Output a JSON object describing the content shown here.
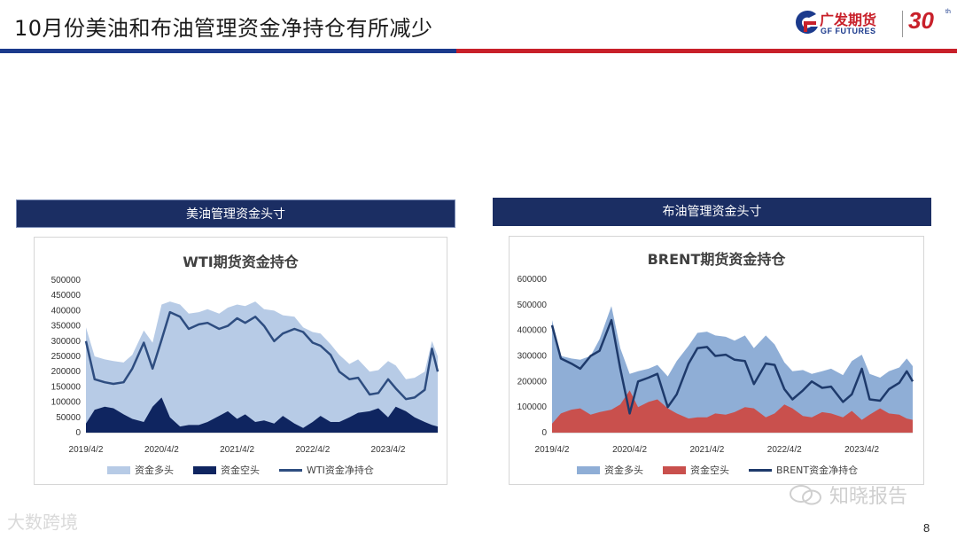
{
  "slide": {
    "title": "10月份美油和布油管理资金净持仓有所减少",
    "page_number": "8"
  },
  "logo": {
    "name_cn": "广发期货",
    "name_en": "GF FUTURES",
    "anniversary": "30",
    "anniversary_suffix": "th"
  },
  "colors": {
    "brand_blue": "#1b3a8c",
    "brand_red": "#c8202a",
    "header_navy": "#1b2e63"
  },
  "watermarks": {
    "left": "大数跨境",
    "right": "知晓报告"
  },
  "chart_data": [
    {
      "type": "area",
      "panel_header": "美油管理资金头寸",
      "title": "WTI期货资金持仓",
      "xlabel": "",
      "ylabel": "",
      "ylim": [
        0,
        500000
      ],
      "yticks": [
        0,
        50000,
        100000,
        150000,
        200000,
        250000,
        300000,
        350000,
        400000,
        450000,
        500000
      ],
      "xticks": [
        "2019/4/2",
        "2020/4/2",
        "2021/4/2",
        "2022/4/2",
        "2023/4/2"
      ],
      "x_range": [
        "2019/4/2",
        "2023/11/28"
      ],
      "legend_position": "bottom",
      "x": [
        "2019/4/2",
        "2019/5/14",
        "2019/7/2",
        "2019/8/13",
        "2019/10/1",
        "2019/11/12",
        "2020/1/7",
        "2020/2/18",
        "2020/4/2",
        "2020/5/12",
        "2020/6/30",
        "2020/8/11",
        "2020/9/29",
        "2020/11/10",
        "2021/1/5",
        "2021/2/16",
        "2021/4/2",
        "2021/5/11",
        "2021/6/29",
        "2021/8/10",
        "2021/9/28",
        "2021/11/9",
        "2022/1/4",
        "2022/2/15",
        "2022/4/2",
        "2022/5/10",
        "2022/6/28",
        "2022/8/9",
        "2022/9/27",
        "2022/11/8",
        "2023/1/3",
        "2023/2/14",
        "2023/4/2",
        "2023/5/9",
        "2023/6/27",
        "2023/8/8",
        "2023/9/26",
        "2023/10/31",
        "2023/11/28"
      ],
      "series": [
        {
          "name": "资金多头",
          "color": "#b7cbe6",
          "style": "area",
          "values": [
            345000,
            250000,
            240000,
            235000,
            230000,
            255000,
            335000,
            295000,
            420000,
            430000,
            420000,
            390000,
            395000,
            405000,
            390000,
            410000,
            420000,
            415000,
            430000,
            405000,
            400000,
            385000,
            380000,
            345000,
            330000,
            325000,
            290000,
            255000,
            225000,
            240000,
            200000,
            205000,
            235000,
            220000,
            175000,
            180000,
            200000,
            300000,
            250000
          ]
        },
        {
          "name": "资金空头",
          "color": "#0f2560",
          "style": "area",
          "values": [
            30000,
            75000,
            85000,
            80000,
            60000,
            45000,
            35000,
            85000,
            115000,
            50000,
            20000,
            25000,
            25000,
            35000,
            55000,
            70000,
            45000,
            60000,
            35000,
            40000,
            30000,
            55000,
            30000,
            15000,
            35000,
            55000,
            35000,
            35000,
            50000,
            65000,
            70000,
            80000,
            50000,
            85000,
            70000,
            50000,
            35000,
            25000,
            20000
          ]
        },
        {
          "name": "WTI资金净持仓",
          "color": "#2e4d80",
          "style": "line",
          "values": [
            300000,
            175000,
            165000,
            160000,
            165000,
            210000,
            295000,
            210000,
            305000,
            395000,
            380000,
            340000,
            355000,
            360000,
            340000,
            350000,
            375000,
            360000,
            380000,
            350000,
            300000,
            325000,
            340000,
            330000,
            295000,
            285000,
            255000,
            200000,
            175000,
            180000,
            125000,
            130000,
            175000,
            145000,
            110000,
            115000,
            140000,
            275000,
            200000
          ]
        }
      ]
    },
    {
      "type": "area",
      "panel_header": "布油管理资金头寸",
      "title": "BRENT期货资金持仓",
      "xlabel": "",
      "ylabel": "",
      "ylim": [
        0,
        600000
      ],
      "yticks": [
        0,
        100000,
        200000,
        300000,
        400000,
        500000,
        600000
      ],
      "xticks": [
        "2019/4/2",
        "2020/4/2",
        "2021/4/2",
        "2022/4/2",
        "2023/4/2"
      ],
      "x_range": [
        "2019/4/2",
        "2023/11/28"
      ],
      "legend_position": "bottom",
      "x": [
        "2019/4/2",
        "2019/5/14",
        "2019/7/2",
        "2019/8/13",
        "2019/10/1",
        "2019/11/12",
        "2020/1/7",
        "2020/2/18",
        "2020/4/2",
        "2020/5/12",
        "2020/6/30",
        "2020/8/11",
        "2020/9/29",
        "2020/11/10",
        "2021/1/5",
        "2021/2/16",
        "2021/4/2",
        "2021/5/11",
        "2021/6/29",
        "2021/8/10",
        "2021/9/28",
        "2021/11/9",
        "2022/1/4",
        "2022/2/15",
        "2022/4/2",
        "2022/5/10",
        "2022/6/28",
        "2022/8/9",
        "2022/9/27",
        "2022/11/8",
        "2023/1/3",
        "2023/2/14",
        "2023/4/2",
        "2023/5/9",
        "2023/6/27",
        "2023/8/8",
        "2023/9/26",
        "2023/10/31",
        "2023/11/28"
      ],
      "series": [
        {
          "name": "资金多头",
          "color": "#8faed6",
          "style": "area",
          "values": [
            440000,
            300000,
            290000,
            285000,
            300000,
            365000,
            495000,
            330000,
            230000,
            240000,
            250000,
            265000,
            220000,
            280000,
            340000,
            390000,
            395000,
            380000,
            375000,
            360000,
            380000,
            330000,
            380000,
            345000,
            275000,
            240000,
            245000,
            230000,
            240000,
            250000,
            225000,
            280000,
            305000,
            230000,
            215000,
            240000,
            255000,
            290000,
            260000
          ]
        },
        {
          "name": "资金空头",
          "color": "#c9504d",
          "style": "area",
          "values": [
            35000,
            75000,
            90000,
            95000,
            70000,
            80000,
            90000,
            110000,
            165000,
            100000,
            120000,
            130000,
            95000,
            75000,
            55000,
            60000,
            60000,
            75000,
            70000,
            80000,
            100000,
            95000,
            60000,
            75000,
            110000,
            95000,
            65000,
            60000,
            80000,
            75000,
            60000,
            85000,
            50000,
            70000,
            95000,
            75000,
            70000,
            55000,
            50000
          ]
        },
        {
          "name": "BRENT资金净持仓",
          "color": "#1e3a6b",
          "style": "line",
          "values": [
            420000,
            290000,
            270000,
            250000,
            300000,
            320000,
            440000,
            250000,
            75000,
            200000,
            215000,
            230000,
            100000,
            150000,
            270000,
            330000,
            335000,
            300000,
            305000,
            285000,
            280000,
            190000,
            270000,
            265000,
            170000,
            130000,
            165000,
            200000,
            175000,
            180000,
            120000,
            150000,
            250000,
            130000,
            125000,
            170000,
            195000,
            240000,
            200000
          ]
        }
      ]
    }
  ]
}
